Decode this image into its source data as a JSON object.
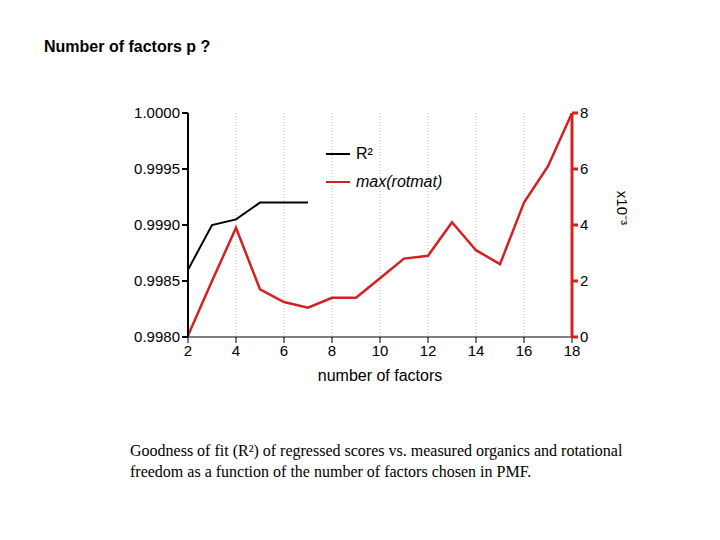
{
  "chart_data": {
    "type": "line",
    "title": "Number of factors p ?",
    "xlabel": "number of factors",
    "y2label": "x10⁻³",
    "caption": "Goodness of fit (R²) of regressed scores vs. measured organics and rotational freedom as a function of the number of factors chosen in PMF.",
    "x": [
      2,
      3,
      4,
      5,
      6,
      7,
      8,
      9,
      10,
      11,
      12,
      13,
      14,
      15,
      16,
      17,
      18
    ],
    "series": [
      {
        "name": "R²",
        "color": "#000000",
        "values": [
          0.9986,
          0.999,
          0.99905,
          0.9992,
          0.9992,
          0.9992,
          null,
          null,
          null,
          null,
          null,
          null,
          null,
          null,
          null,
          null,
          null
        ]
      },
      {
        "name": "max(rotmat)",
        "color": "#d42020",
        "axis": "y2",
        "values": [
          0.05,
          2.0,
          3.9,
          1.7,
          1.25,
          1.05,
          1.4,
          1.4,
          2.1,
          2.8,
          2.9,
          4.1,
          3.1,
          2.6,
          4.8,
          6.1,
          8.0
        ]
      }
    ],
    "xlim": [
      2,
      18
    ],
    "xticks": [
      2,
      4,
      6,
      8,
      10,
      12,
      14,
      16,
      18
    ],
    "ylim": [
      0.998,
      1
    ],
    "yticks": [
      {
        "value": 0.998,
        "label": "0.9980"
      },
      0.9985,
      {
        "value": 0.999,
        "label": "0.9990"
      },
      0.9995,
      {
        "value": 1,
        "label": "1.0000"
      }
    ],
    "y2lim": [
      0,
      8
    ],
    "y2ticks": [
      0,
      2,
      4,
      6,
      8
    ],
    "grid": true
  }
}
